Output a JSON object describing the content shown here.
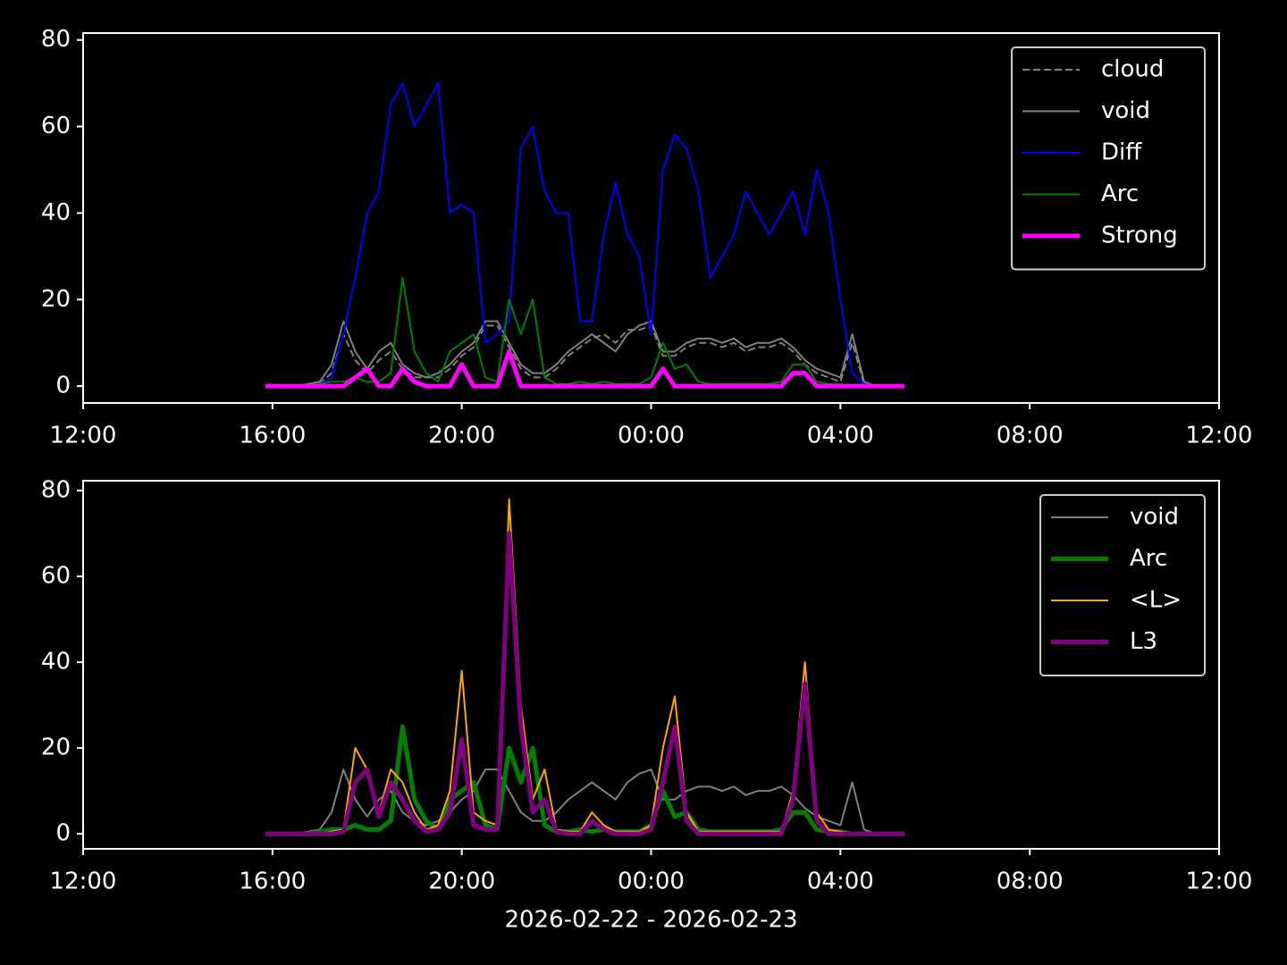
{
  "chart_data": [
    {
      "type": "line",
      "x": [
        15.85,
        16,
        16.25,
        16.5,
        16.75,
        17,
        17.25,
        17.5,
        17.75,
        18,
        18.25,
        18.5,
        18.75,
        19,
        19.25,
        19.5,
        19.75,
        20,
        20.25,
        20.5,
        20.75,
        21,
        21.25,
        21.5,
        21.75,
        22,
        22.25,
        22.5,
        22.75,
        23,
        23.25,
        23.5,
        23.75,
        24,
        24.25,
        24.5,
        24.75,
        25,
        25.25,
        25.5,
        25.75,
        26,
        26.25,
        26.5,
        26.75,
        27,
        27.25,
        27.5,
        27.75,
        28,
        28.25,
        28.5,
        28.75,
        29,
        29.25,
        29.35
      ],
      "xlim": [
        12,
        36
      ],
      "xticks": [
        {
          "value": 12,
          "label": "12:00"
        },
        {
          "value": 16,
          "label": "16:00"
        },
        {
          "value": 20,
          "label": "20:00"
        },
        {
          "value": 24,
          "label": "00:00"
        },
        {
          "value": 28,
          "label": "04:00"
        },
        {
          "value": 32,
          "label": "08:00"
        },
        {
          "value": 36,
          "label": "12:00"
        }
      ],
      "ylim": [
        -3.9,
        81.6
      ],
      "yticks": [
        0,
        20,
        40,
        60,
        80
      ],
      "legend": "upper right",
      "series": [
        {
          "name": "cloud",
          "color": "#808080",
          "linestyle": "dashed",
          "linewidth": 2,
          "values": [
            0,
            0,
            0,
            0,
            0,
            0.5,
            3,
            12,
            6,
            3,
            6,
            8,
            4,
            2,
            2,
            2,
            4,
            7,
            9,
            14,
            14,
            9,
            4,
            2,
            2,
            4,
            7,
            9,
            11,
            12,
            10,
            13,
            13,
            14,
            7,
            7,
            9,
            10,
            10,
            9,
            10,
            8,
            9,
            9,
            10,
            8,
            5,
            3,
            2,
            1,
            10,
            0.5,
            0,
            0,
            0,
            0
          ]
        },
        {
          "name": "void",
          "color": "#808080",
          "linestyle": "solid",
          "linewidth": 2,
          "values": [
            0,
            0,
            0,
            0,
            0.5,
            1,
            5,
            15,
            8,
            4,
            8,
            10,
            5,
            3,
            2,
            3,
            5,
            8,
            10,
            15,
            15,
            10,
            5,
            3,
            3,
            5,
            8,
            10,
            12,
            10,
            8,
            12,
            14,
            15,
            8,
            8,
            10,
            11,
            11,
            10,
            11,
            9,
            10,
            10,
            11,
            9,
            6,
            4,
            3,
            2,
            12,
            1,
            0,
            0,
            0,
            0
          ]
        },
        {
          "name": "Diff",
          "color": "#0000ff",
          "linestyle": "solid",
          "linewidth": 2,
          "values": [
            0,
            0,
            0,
            0,
            0,
            0.5,
            2,
            12,
            25,
            40,
            45,
            65,
            70,
            60,
            65,
            70,
            40,
            42,
            40,
            10,
            12,
            15,
            55,
            60,
            45,
            40,
            40,
            15,
            15,
            35,
            47,
            35,
            30,
            12,
            50,
            58,
            55,
            45,
            25,
            30,
            35,
            45,
            40,
            35,
            40,
            45,
            35,
            50,
            40,
            20,
            3,
            0.5,
            0,
            0,
            0,
            0
          ]
        },
        {
          "name": "Arc",
          "color": "#008000",
          "linestyle": "solid",
          "linewidth": 2,
          "values": [
            0,
            0,
            0,
            0,
            0,
            0.5,
            1,
            1,
            2,
            1,
            1,
            3,
            25,
            8,
            3,
            1,
            8,
            10,
            12,
            2,
            1,
            20,
            12,
            20,
            2,
            0.5,
            0.5,
            1,
            0.5,
            1,
            0.5,
            0.5,
            0.5,
            2,
            10,
            4,
            5,
            1,
            0.5,
            0.5,
            0.5,
            0.5,
            0.5,
            0.5,
            1,
            5,
            5,
            1,
            0.5,
            0.5,
            0,
            0,
            0,
            0,
            0,
            0
          ]
        },
        {
          "name": "Strong",
          "color": "#ff00ff",
          "linestyle": "solid",
          "linewidth": 5,
          "values": [
            0,
            0,
            0,
            0,
            0,
            0,
            0,
            0,
            2,
            4,
            0,
            0,
            4,
            1,
            0,
            0,
            0,
            5,
            0,
            0,
            0,
            8,
            0,
            0,
            0,
            0,
            0,
            0,
            0,
            0,
            0,
            0,
            0,
            0,
            4,
            0,
            0,
            0,
            0,
            0,
            0,
            0,
            0,
            0,
            0,
            3,
            3,
            0,
            0,
            0,
            0,
            0,
            0,
            0,
            0,
            0
          ]
        }
      ]
    },
    {
      "type": "line",
      "x": [
        15.85,
        16,
        16.25,
        16.5,
        16.75,
        17,
        17.25,
        17.5,
        17.75,
        18,
        18.25,
        18.5,
        18.75,
        19,
        19.25,
        19.5,
        19.75,
        20,
        20.25,
        20.5,
        20.75,
        21,
        21.25,
        21.5,
        21.75,
        22,
        22.25,
        22.5,
        22.75,
        23,
        23.25,
        23.5,
        23.75,
        24,
        24.25,
        24.5,
        24.75,
        25,
        25.25,
        25.5,
        25.75,
        26,
        26.25,
        26.5,
        26.75,
        27,
        27.25,
        27.5,
        27.75,
        28,
        28.25,
        28.5,
        28.75,
        29,
        29.25,
        29.35
      ],
      "xlim": [
        12,
        36
      ],
      "xticks": [
        {
          "value": 12,
          "label": "12:00"
        },
        {
          "value": 16,
          "label": "16:00"
        },
        {
          "value": 20,
          "label": "20:00"
        },
        {
          "value": 24,
          "label": "00:00"
        },
        {
          "value": 28,
          "label": "04:00"
        },
        {
          "value": 32,
          "label": "08:00"
        },
        {
          "value": 36,
          "label": "12:00"
        }
      ],
      "xlabel": "2026-02-22 - 2026-02-23",
      "ylim": [
        -3.5,
        82.3
      ],
      "yticks": [
        0,
        20,
        40,
        60,
        80
      ],
      "legend": "upper right",
      "series": [
        {
          "name": "void",
          "color": "#808080",
          "linestyle": "solid",
          "linewidth": 2,
          "values": [
            0,
            0,
            0,
            0,
            0.5,
            1,
            5,
            15,
            8,
            4,
            8,
            10,
            5,
            3,
            2,
            3,
            5,
            8,
            10,
            15,
            15,
            10,
            5,
            3,
            3,
            5,
            8,
            10,
            12,
            10,
            8,
            12,
            14,
            15,
            8,
            8,
            10,
            11,
            11,
            10,
            11,
            9,
            10,
            10,
            11,
            9,
            6,
            4,
            3,
            2,
            12,
            1,
            0,
            0,
            0,
            0
          ]
        },
        {
          "name": "Arc",
          "color": "#008000",
          "linestyle": "solid",
          "linewidth": 5,
          "values": [
            0,
            0,
            0,
            0,
            0,
            0.5,
            1,
            1,
            2,
            1,
            1,
            3,
            25,
            8,
            3,
            1,
            8,
            10,
            12,
            2,
            1,
            20,
            12,
            20,
            2,
            0.5,
            0.5,
            1,
            0.5,
            1,
            0.5,
            0.5,
            0.5,
            2,
            10,
            4,
            5,
            1,
            0.5,
            0.5,
            0.5,
            0.5,
            0.5,
            0.5,
            1,
            5,
            5,
            1,
            0.5,
            0.5,
            0,
            0,
            0,
            0,
            0,
            0
          ]
        },
        {
          "name": "<L>",
          "color": "#ffa500",
          "linestyle": "solid",
          "linewidth": 2,
          "values": [
            0,
            0,
            0,
            0,
            0,
            0,
            0.5,
            1,
            20,
            15,
            5,
            15,
            12,
            5,
            1,
            2,
            10,
            38,
            5,
            3,
            2,
            78,
            30,
            8,
            15,
            1,
            0.5,
            0.5,
            5,
            2,
            0.5,
            0.5,
            0.5,
            2,
            20,
            32,
            5,
            0.5,
            0.5,
            0.5,
            0.5,
            0.5,
            0.5,
            0.5,
            0.5,
            10,
            40,
            5,
            1,
            0.5,
            0,
            0,
            0,
            0,
            0,
            0
          ]
        },
        {
          "name": "L3",
          "color": "#800080",
          "linestyle": "solid",
          "linewidth": 5,
          "values": [
            0,
            0,
            0,
            0,
            0,
            0,
            0,
            0.5,
            12,
            15,
            4,
            12,
            8,
            3,
            0.5,
            1,
            5,
            22,
            2,
            1,
            1,
            70,
            25,
            5,
            8,
            0.5,
            0,
            0,
            3,
            1,
            0,
            0,
            0,
            1,
            12,
            25,
            3,
            0,
            0,
            0,
            0,
            0,
            0,
            0,
            0,
            8,
            35,
            3,
            0,
            0,
            0,
            0,
            0,
            0,
            0,
            0
          ]
        }
      ]
    }
  ]
}
